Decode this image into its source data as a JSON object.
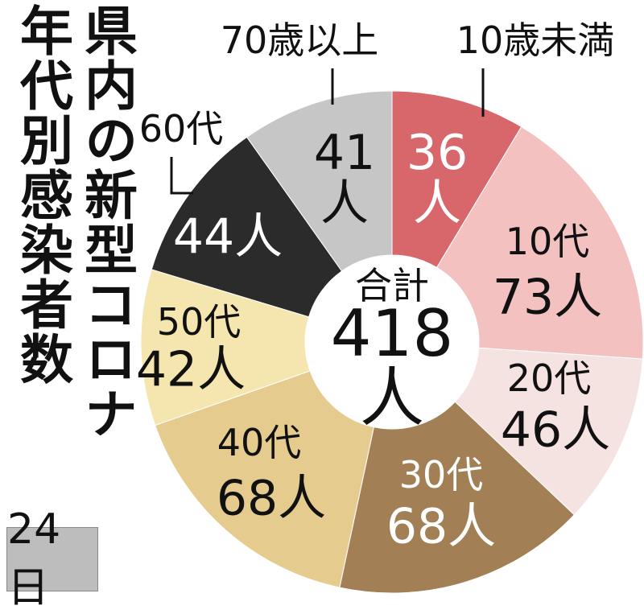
{
  "chart_data": {
    "type": "donut",
    "title": [
      "県内の新型コロナ",
      "年代別感染者数"
    ],
    "categories": [
      "10歳未満",
      "10代",
      "20代",
      "30代",
      "40代",
      "50代",
      "60代",
      "70歳以上"
    ],
    "values": [
      36,
      73,
      46,
      68,
      68,
      42,
      44,
      41
    ],
    "value_labels": [
      "36人",
      "73人",
      "46人",
      "68人",
      "68人",
      "42人",
      "44人",
      "41人"
    ],
    "colors": [
      "#d8676b",
      "#f2c1c0",
      "#f4e3e0",
      "#a27f55",
      "#e6cb8f",
      "#f5e6b0",
      "#2b2b2b",
      "#c6c6c6"
    ],
    "total_label": "合計",
    "total": 418,
    "total_value_label": "418人",
    "date": "24日"
  }
}
